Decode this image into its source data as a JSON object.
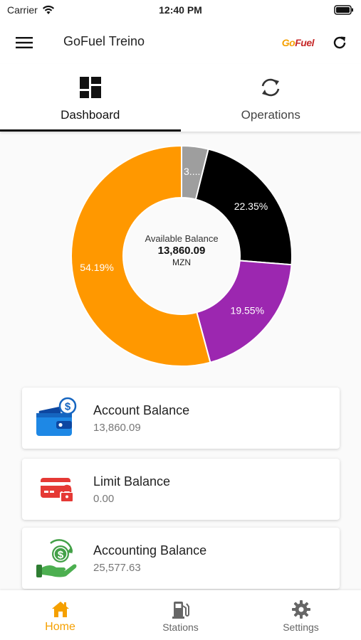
{
  "status_bar": {
    "carrier": "Carrier",
    "time": "12:40 PM"
  },
  "app_bar": {
    "title": "GoFuel Treino",
    "logo_go": "Go",
    "logo_fuel": "Fuel",
    "menu_icon": "hamburger-menu-icon",
    "refresh_icon": "refresh-icon"
  },
  "tabs": [
    {
      "label": "Dashboard",
      "icon": "dashboard-grid-icon",
      "active": true
    },
    {
      "label": "Operations",
      "icon": "sync-icon",
      "active": false
    }
  ],
  "chart_data": {
    "type": "pie",
    "categories": [
      "3....",
      "22.35%",
      "19.55%",
      "54.19%"
    ],
    "values": [
      3.91,
      22.35,
      19.55,
      54.19
    ],
    "colors": [
      "#9e9e9e",
      "#000000",
      "#9c27b0",
      "#ff9800"
    ],
    "center_label": "Available Balance",
    "center_value": "13,860.09",
    "center_unit": "MZN"
  },
  "cards": [
    {
      "title": "Account Balance",
      "value": "13,860.09",
      "icon": "wallet-dollar-icon"
    },
    {
      "title": "Limit Balance",
      "value": "0.00",
      "icon": "locked-card-icon"
    },
    {
      "title": "Accounting Balance",
      "value": "25,577.63",
      "icon": "hand-money-icon"
    }
  ],
  "bottom_nav": [
    {
      "label": "Home",
      "icon": "home-icon",
      "active": true
    },
    {
      "label": "Stations",
      "icon": "fuel-pump-icon",
      "active": false
    },
    {
      "label": "Settings",
      "icon": "gear-icon",
      "active": false
    }
  ],
  "colors": {
    "accent": "#f5a000",
    "text_dark": "#222222",
    "text_muted": "#777777"
  }
}
